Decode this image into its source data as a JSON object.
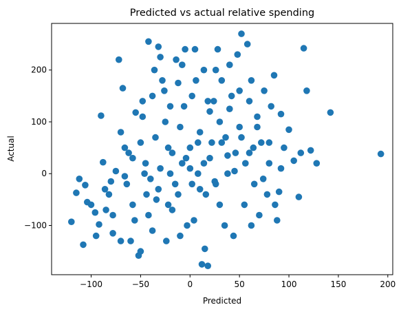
{
  "chart_data": {
    "type": "scatter",
    "title": "Predicted vs actual relative spending",
    "xlabel": "Predicted",
    "ylabel": "Actual",
    "xlim": [
      -140,
      205
    ],
    "ylim": [
      -195,
      290
    ],
    "x_ticks": [
      -100,
      -50,
      0,
      50,
      100,
      150,
      200
    ],
    "y_ticks": [
      -100,
      0,
      100,
      200
    ],
    "x_tick_labels": [
      "−100",
      "−50",
      "0",
      "50",
      "100",
      "150",
      "200"
    ],
    "y_tick_labels": [
      "−100",
      "0",
      "100",
      "200"
    ],
    "grid": false,
    "legend": "none",
    "marker_color": "#1f77b4",
    "series": [
      {
        "points": [
          [
            -120,
            -93
          ],
          [
            -115,
            -37
          ],
          [
            -112,
            -10
          ],
          [
            -108,
            -137
          ],
          [
            -106,
            -22
          ],
          [
            -104,
            -55
          ],
          [
            -100,
            -60
          ],
          [
            -96,
            -75
          ],
          [
            -92,
            -98
          ],
          [
            -90,
            112
          ],
          [
            -88,
            22
          ],
          [
            -85,
            -70
          ],
          [
            -82,
            -40
          ],
          [
            -80,
            -15
          ],
          [
            -78,
            -115
          ],
          [
            -75,
            5
          ],
          [
            -72,
            220
          ],
          [
            -70,
            80
          ],
          [
            -68,
            165
          ],
          [
            -66,
            -5
          ],
          [
            -62,
            40
          ],
          [
            -60,
            -130
          ],
          [
            -58,
            30
          ],
          [
            -55,
            118
          ],
          [
            -52,
            -158
          ],
          [
            -50,
            60
          ],
          [
            -48,
            140
          ],
          [
            -45,
            20
          ],
          [
            -42,
            255
          ],
          [
            -40,
            -10
          ],
          [
            -38,
            150
          ],
          [
            -35,
            70
          ],
          [
            -32,
            245
          ],
          [
            -30,
            225
          ],
          [
            -28,
            180
          ],
          [
            -25,
            100
          ],
          [
            -22,
            -60
          ],
          [
            -20,
            130
          ],
          [
            -18,
            40
          ],
          [
            -15,
            -20
          ],
          [
            -12,
            175
          ],
          [
            -10,
            90
          ],
          [
            -8,
            210
          ],
          [
            -5,
            240
          ],
          [
            -3,
            -100
          ],
          [
            0,
            10
          ],
          [
            2,
            150
          ],
          [
            5,
            240
          ],
          [
            8,
            60
          ],
          [
            10,
            -30
          ],
          [
            12,
            -175
          ],
          [
            14,
            200
          ],
          [
            15,
            -145
          ],
          [
            18,
            -178
          ],
          [
            20,
            120
          ],
          [
            22,
            60
          ],
          [
            25,
            -15
          ],
          [
            28,
            240
          ],
          [
            30,
            100
          ],
          [
            32,
            180
          ],
          [
            35,
            -100
          ],
          [
            38,
            35
          ],
          [
            40,
            210
          ],
          [
            42,
            150
          ],
          [
            45,
            5
          ],
          [
            48,
            230
          ],
          [
            50,
            90
          ],
          [
            52,
            270
          ],
          [
            55,
            -60
          ],
          [
            58,
            250
          ],
          [
            60,
            40
          ],
          [
            62,
            180
          ],
          [
            65,
            -20
          ],
          [
            68,
            110
          ],
          [
            70,
            -80
          ],
          [
            72,
            60
          ],
          [
            75,
            160
          ],
          [
            78,
            -40
          ],
          [
            80,
            20
          ],
          [
            82,
            130
          ],
          [
            85,
            190
          ],
          [
            88,
            -90
          ],
          [
            90,
            -35
          ],
          [
            92,
            115
          ],
          [
            95,
            50
          ],
          [
            100,
            85
          ],
          [
            105,
            25
          ],
          [
            110,
            -45
          ],
          [
            112,
            40
          ],
          [
            115,
            242
          ],
          [
            118,
            160
          ],
          [
            122,
            45
          ],
          [
            128,
            20
          ],
          [
            142,
            118
          ],
          [
            193,
            38
          ],
          [
            -95,
            -120
          ],
          [
            -86,
            -30
          ],
          [
            -78,
            -80
          ],
          [
            -70,
            -130
          ],
          [
            -64,
            -20
          ],
          [
            -56,
            -90
          ],
          [
            -50,
            -150
          ],
          [
            -44,
            -40
          ],
          [
            -38,
            -110
          ],
          [
            -30,
            10
          ],
          [
            -24,
            -130
          ],
          [
            -18,
            -70
          ],
          [
            -10,
            -120
          ],
          [
            -4,
            30
          ],
          [
            4,
            -90
          ],
          [
            10,
            80
          ],
          [
            16,
            -40
          ],
          [
            24,
            140
          ],
          [
            30,
            -60
          ],
          [
            36,
            70
          ],
          [
            44,
            -120
          ],
          [
            50,
            160
          ],
          [
            56,
            20
          ],
          [
            62,
            -100
          ],
          [
            68,
            90
          ],
          [
            74,
            -10
          ],
          [
            80,
            60
          ],
          [
            86,
            -60
          ],
          [
            92,
            10
          ],
          [
            -66,
            50
          ],
          [
            -48,
            110
          ],
          [
            -36,
            200
          ],
          [
            -26,
            160
          ],
          [
            -14,
            220
          ],
          [
            -6,
            130
          ],
          [
            6,
            180
          ],
          [
            18,
            140
          ],
          [
            26,
            200
          ],
          [
            40,
            125
          ],
          [
            60,
            140
          ],
          [
            -58,
            -60
          ],
          [
            -42,
            -80
          ],
          [
            -32,
            -30
          ],
          [
            -20,
            0
          ],
          [
            -8,
            20
          ],
          [
            0,
            50
          ],
          [
            8,
            0
          ],
          [
            20,
            30
          ],
          [
            32,
            60
          ],
          [
            46,
            40
          ],
          [
            -46,
            0
          ],
          [
            -34,
            -50
          ],
          [
            -22,
            50
          ],
          [
            -12,
            -40
          ],
          [
            2,
            -20
          ],
          [
            14,
            20
          ],
          [
            26,
            -20
          ],
          [
            38,
            0
          ],
          [
            52,
            70
          ],
          [
            64,
            50
          ]
        ]
      }
    ]
  }
}
